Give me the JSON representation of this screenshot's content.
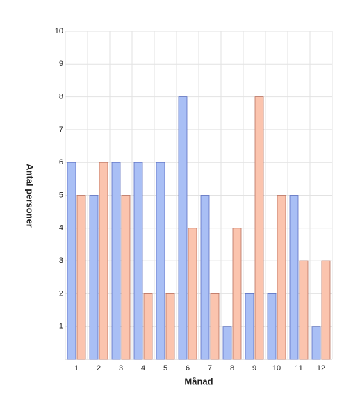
{
  "chart_data": {
    "type": "bar",
    "x_label": "Månad",
    "y_label": "Antal personer",
    "categories": [
      "1",
      "2",
      "3",
      "4",
      "5",
      "6",
      "7",
      "8",
      "9",
      "10",
      "11",
      "12"
    ],
    "series": [
      {
        "color": "#a9bff5",
        "values": [
          6,
          5,
          6,
          6,
          6,
          8,
          5,
          1,
          2,
          2,
          5,
          1
        ]
      },
      {
        "color": "#fbc4ae",
        "values": [
          5,
          6,
          5,
          2,
          2,
          4,
          2,
          4,
          8,
          5,
          3,
          3
        ]
      }
    ],
    "ylim": [
      0,
      10
    ],
    "yticks": [
      1,
      2,
      3,
      4,
      5,
      6,
      7,
      8,
      9,
      10
    ],
    "grid": true
  }
}
